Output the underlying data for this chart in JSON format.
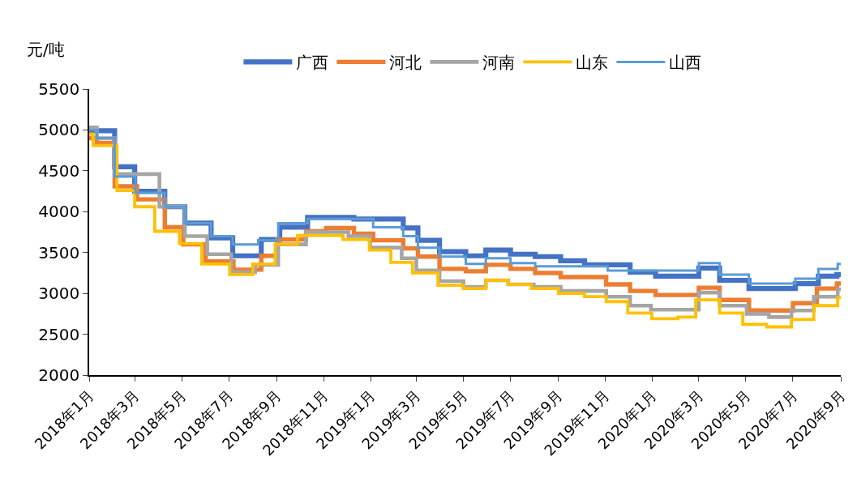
{
  "chart_data": {
    "type": "step",
    "ylabel": "元/吨",
    "legend": "top",
    "marker": "none",
    "line_style": "solid",
    "xlim": [
      "2018-01-01",
      "2020-09-01"
    ],
    "ylim": [
      2000,
      5500
    ],
    "yticks": [
      2000,
      2500,
      3000,
      3500,
      4000,
      4500,
      5000,
      5500
    ],
    "xticks": [
      {
        "value": "2018-01-01",
        "label": "2018年1月"
      },
      {
        "value": "2018-03-01",
        "label": "2018年3月"
      },
      {
        "value": "2018-05-01",
        "label": "2018年5月"
      },
      {
        "value": "2018-07-01",
        "label": "2018年7月"
      },
      {
        "value": "2018-09-01",
        "label": "2018年9月"
      },
      {
        "value": "2018-11-01",
        "label": "2018年11月"
      },
      {
        "value": "2019-01-01",
        "label": "2019年1月"
      },
      {
        "value": "2019-03-01",
        "label": "2019年3月"
      },
      {
        "value": "2019-05-01",
        "label": "2019年5月"
      },
      {
        "value": "2019-07-01",
        "label": "2019年7月"
      },
      {
        "value": "2019-09-01",
        "label": "2019年9月"
      },
      {
        "value": "2019-11-01",
        "label": "2019年11月"
      },
      {
        "value": "2020-01-01",
        "label": "2020年1月"
      },
      {
        "value": "2020-03-01",
        "label": "2020年3月"
      },
      {
        "value": "2020-05-01",
        "label": "2020年5月"
      },
      {
        "value": "2020-07-01",
        "label": "2020年7月"
      },
      {
        "value": "2020-09-01",
        "label": "2020年9月"
      }
    ],
    "series": [
      {
        "name": "广西",
        "color": "#4472c4",
        "x": [
          "2018-01-01",
          "2018-02-03",
          "2018-03-01",
          "2018-04-09",
          "2018-05-05",
          "2018-06-08",
          "2018-07-06",
          "2018-08-12",
          "2018-09-05",
          "2018-10-11",
          "2018-12-10",
          "2019-02-12",
          "2019-03-03",
          "2019-03-31",
          "2019-05-04",
          "2019-05-30",
          "2019-07-01",
          "2019-08-02",
          "2019-09-04",
          "2019-10-05",
          "2019-12-03",
          "2020-01-05",
          "2020-03-01",
          "2020-03-28",
          "2020-05-05",
          "2020-07-04",
          "2020-08-03",
          "2020-08-27",
          "2020-09-01"
        ],
        "values": [
          4990,
          4550,
          4250,
          4060,
          3860,
          3680,
          3460,
          3660,
          3810,
          3930,
          3910,
          3800,
          3650,
          3510,
          3460,
          3530,
          3480,
          3450,
          3400,
          3350,
          3260,
          3210,
          3310,
          3160,
          3060,
          3120,
          3210,
          3230,
          3230
        ]
      },
      {
        "name": "河北",
        "color": "#ed7d31",
        "x": [
          "2018-01-01",
          "2018-01-11",
          "2018-02-03",
          "2018-03-04",
          "2018-04-09",
          "2018-05-03",
          "2018-06-01",
          "2018-07-07",
          "2018-08-12",
          "2018-09-02",
          "2018-10-09",
          "2018-11-04",
          "2018-12-10",
          "2019-01-04",
          "2019-02-12",
          "2019-03-03",
          "2019-03-31",
          "2019-05-04",
          "2019-05-30",
          "2019-07-01",
          "2019-08-02",
          "2019-09-04",
          "2019-11-02",
          "2019-12-03",
          "2020-01-05",
          "2020-03-01",
          "2020-03-28",
          "2020-05-05",
          "2020-07-01",
          "2020-08-01",
          "2020-08-27",
          "2020-09-01"
        ],
        "values": [
          4900,
          4840,
          4310,
          4150,
          3810,
          3600,
          3390,
          3290,
          3460,
          3660,
          3760,
          3800,
          3730,
          3650,
          3550,
          3450,
          3300,
          3270,
          3350,
          3300,
          3250,
          3200,
          3110,
          3030,
          2980,
          3070,
          2920,
          2790,
          2880,
          3060,
          3120,
          3120
        ]
      },
      {
        "name": "河南",
        "color": "#a5a5a5",
        "x": [
          "2018-01-01",
          "2018-01-11",
          "2018-02-03",
          "2018-04-02",
          "2018-05-05",
          "2018-06-03",
          "2018-07-04",
          "2018-08-04",
          "2018-09-03",
          "2018-10-09",
          "2018-12-03",
          "2018-12-31",
          "2019-02-10",
          "2019-03-01",
          "2019-03-31",
          "2019-05-01",
          "2019-05-30",
          "2019-06-28",
          "2019-07-31",
          "2019-09-04",
          "2019-11-02",
          "2019-12-03",
          "2019-12-30",
          "2020-03-01",
          "2020-03-28",
          "2020-05-02",
          "2020-05-31",
          "2020-06-29",
          "2020-07-28",
          "2020-08-28",
          "2020-09-01"
        ],
        "values": [
          5030,
          4900,
          4460,
          4060,
          3700,
          3480,
          3260,
          3350,
          3600,
          3750,
          3700,
          3560,
          3430,
          3280,
          3150,
          3080,
          3160,
          3110,
          3080,
          3030,
          2960,
          2850,
          2800,
          3010,
          2850,
          2750,
          2710,
          2790,
          2960,
          3050,
          3050
        ]
      },
      {
        "name": "山东",
        "color": "#ffc000",
        "x": [
          "2018-01-01",
          "2018-01-06",
          "2018-02-06",
          "2018-03-01",
          "2018-03-27",
          "2018-04-28",
          "2018-05-27",
          "2018-07-02",
          "2018-08-01",
          "2018-08-30",
          "2018-09-28",
          "2018-11-26",
          "2018-12-30",
          "2019-01-27",
          "2019-02-24",
          "2019-03-29",
          "2019-05-01",
          "2019-05-30",
          "2019-06-28",
          "2019-07-28",
          "2019-09-01",
          "2019-10-05",
          "2019-11-02",
          "2019-11-30",
          "2019-12-31",
          "2020-02-03",
          "2020-02-26",
          "2020-03-28",
          "2020-04-27",
          "2020-05-28",
          "2020-06-29",
          "2020-07-28",
          "2020-08-28",
          "2020-09-01"
        ],
        "values": [
          4950,
          4810,
          4260,
          4060,
          3760,
          3610,
          3360,
          3230,
          3360,
          3600,
          3710,
          3660,
          3530,
          3380,
          3250,
          3100,
          3060,
          3160,
          3110,
          3060,
          3000,
          2960,
          2900,
          2760,
          2690,
          2710,
          2920,
          2760,
          2620,
          2590,
          2680,
          2850,
          2950,
          2950
        ]
      },
      {
        "name": "山西",
        "color": "#5b9bd5",
        "x": [
          "2018-01-01",
          "2018-01-11",
          "2018-02-03",
          "2018-03-02",
          "2018-04-09",
          "2018-05-05",
          "2018-06-08",
          "2018-07-06",
          "2018-08-08",
          "2018-09-03",
          "2018-10-11",
          "2019-01-04",
          "2019-02-12",
          "2019-03-03",
          "2019-03-31",
          "2019-05-04",
          "2019-05-30",
          "2019-07-01",
          "2019-08-02",
          "2019-11-04",
          "2020-03-01",
          "2020-03-28",
          "2020-05-05",
          "2020-07-04",
          "2020-08-03",
          "2020-08-28",
          "2020-09-01"
        ],
        "values": [
          5000,
          4900,
          4430,
          4230,
          4060,
          3860,
          3700,
          3600,
          3650,
          3860,
          3910,
          3810,
          3700,
          3560,
          3450,
          3360,
          3430,
          3370,
          3330,
          3280,
          3370,
          3230,
          3120,
          3180,
          3300,
          3360,
          3360
        ]
      }
    ]
  }
}
